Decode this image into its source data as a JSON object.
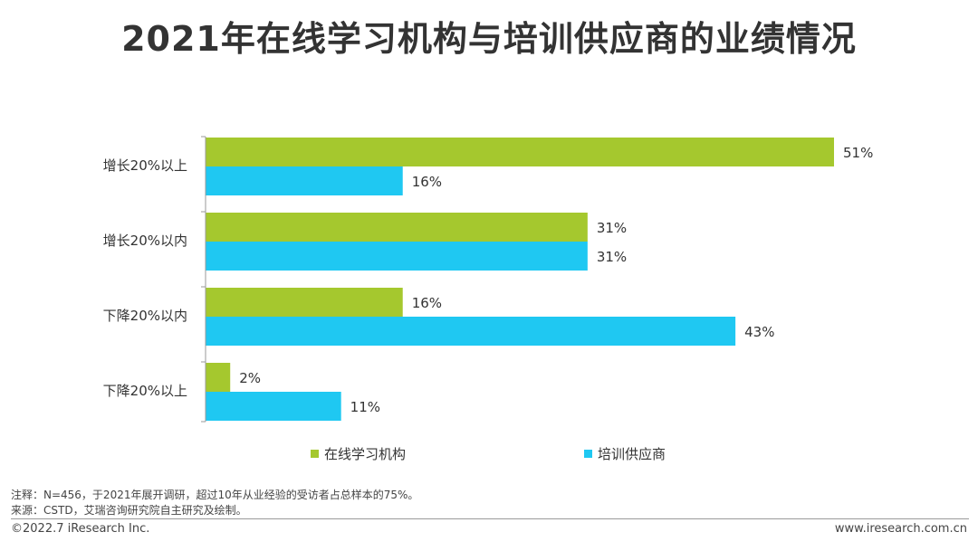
{
  "title": "2021年在线学习机构与培训供应商的业绩情况",
  "chart_data": {
    "type": "bar",
    "orientation": "horizontal",
    "categories": [
      "增长20%以上",
      "增长20%以内",
      "下降20%以内",
      "下降20%以上"
    ],
    "series": [
      {
        "name": "在线学习机构",
        "values": [
          51,
          31,
          16,
          2
        ],
        "labels": [
          "51%",
          "31%",
          "16%",
          "2%"
        ],
        "color": "#a5c82e"
      },
      {
        "name": "培训供应商",
        "values": [
          16,
          31,
          43,
          11
        ],
        "labels": [
          "16%",
          "31%",
          "43%",
          "11%"
        ],
        "color": "#1fc8f2"
      }
    ],
    "xlim": [
      0,
      51
    ],
    "grid": false,
    "legend": "bottom"
  },
  "notes": {
    "note": "注释：N=456，于2021年展开调研，超过10年从业经验的受访者占总样本的75%。",
    "source": "来源：CSTD，艾瑞咨询研究院自主研究及绘制。"
  },
  "footer": {
    "copyright": "©2022.7 iResearch Inc.",
    "website": "www.iresearch.com.cn"
  }
}
